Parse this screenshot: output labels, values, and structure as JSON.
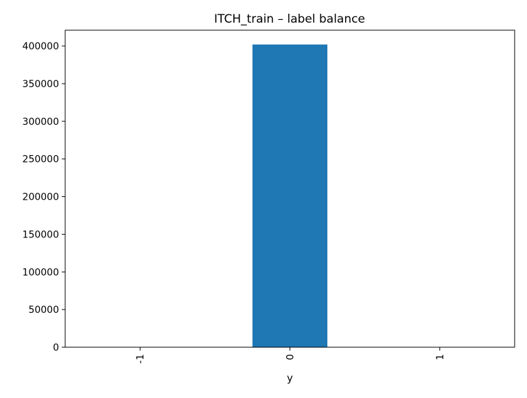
{
  "chart_data": {
    "type": "bar",
    "title": "ITCH_train – label balance",
    "xlabel": "y",
    "ylabel": "",
    "categories": [
      "-1",
      "0",
      "1"
    ],
    "values": [
      0,
      402000,
      0
    ],
    "ylim": [
      0,
      421000
    ],
    "yticks": [
      0,
      50000,
      100000,
      150000,
      200000,
      250000,
      300000,
      350000,
      400000
    ],
    "ytick_labels": [
      "0",
      "50000",
      "100000",
      "150000",
      "200000",
      "250000",
      "300000",
      "350000",
      "400000"
    ],
    "bar_color": "#1f77b4",
    "grid": false,
    "legend": "none"
  }
}
